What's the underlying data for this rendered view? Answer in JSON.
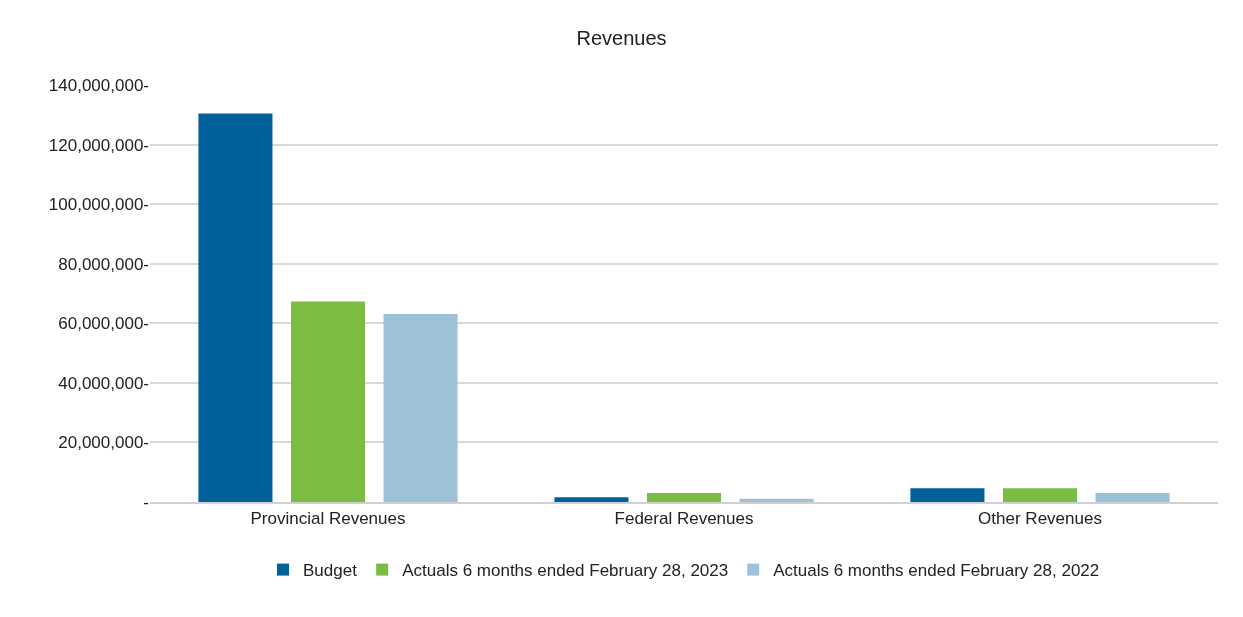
{
  "chart_data": {
    "type": "bar",
    "title": "Revenues",
    "categories": [
      "Provincial Revenues",
      "Federal Revenues",
      "Other Revenues"
    ],
    "series": [
      {
        "name": "Budget",
        "color": "#00609a",
        "values": [
          130400000,
          1600000,
          4600000
        ]
      },
      {
        "name": "Actuals 6 months ended February 28, 2023",
        "color": "#7abd42",
        "values": [
          67300000,
          3000000,
          4600000
        ]
      },
      {
        "name": "Actuals 6 months ended February 28, 2022",
        "color": "#9dc1d9",
        "values": [
          63100000,
          1100000,
          3000000
        ]
      }
    ],
    "ylim": [
      0,
      140000000
    ],
    "yticks": [
      {
        "value": 0,
        "label": "-"
      },
      {
        "value": 20000000,
        "label": "20,000,000-"
      },
      {
        "value": 40000000,
        "label": "40,000,000-"
      },
      {
        "value": 60000000,
        "label": "60,000,000-"
      },
      {
        "value": 80000000,
        "label": "80,000,000-"
      },
      {
        "value": 100000000,
        "label": "100,000,000-"
      },
      {
        "value": 120000000,
        "label": "120,000,000-"
      },
      {
        "value": 140000000,
        "label": "140,000,000-"
      }
    ],
    "grid": "y",
    "legend": "bottom"
  }
}
